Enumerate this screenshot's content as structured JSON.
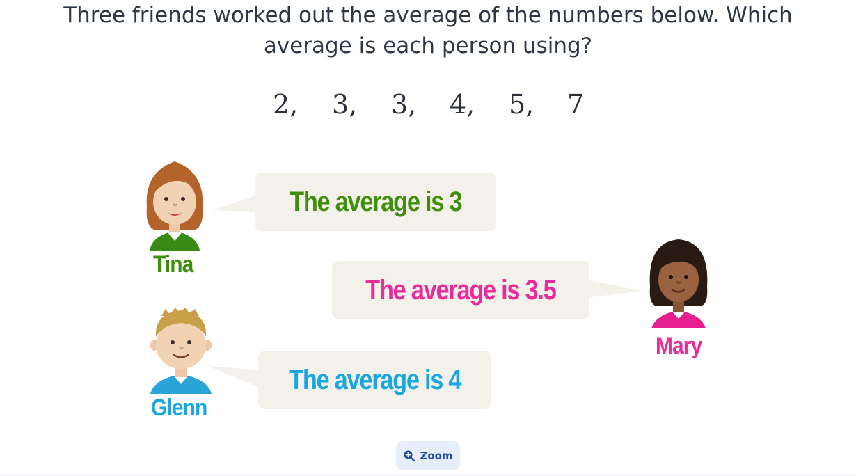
{
  "question": {
    "line1": "Three friends worked out the average of the numbers below. Which",
    "line2": "average is each person using?"
  },
  "numbers": [
    "2,",
    "3,",
    "3,",
    "4,",
    "5,",
    "7"
  ],
  "people": {
    "tina": {
      "name": "Tina",
      "statement": "The average is 3",
      "color": "#3f8f0d"
    },
    "mary": {
      "name": "Mary",
      "statement": "The average is 3.5",
      "color": "#ea2c9a"
    },
    "glenn": {
      "name": "Glenn",
      "statement": "The average is 4",
      "color": "#1aa7e0"
    }
  },
  "zoom": {
    "label": "Zoom",
    "icon": "magnifier-plus-icon"
  },
  "colors": {
    "bubble": "#f3f1ea",
    "zoom_bg": "#e6eefb",
    "zoom_text": "#1f4fa3"
  }
}
